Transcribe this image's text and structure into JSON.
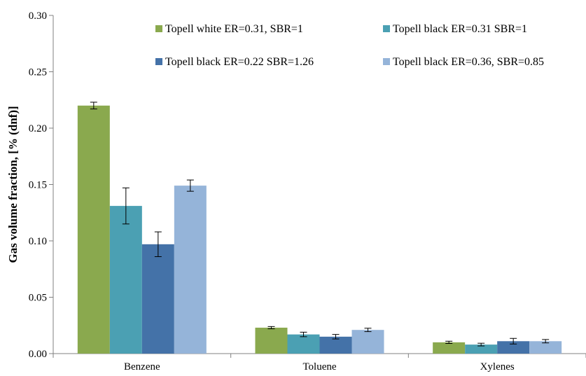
{
  "chart_data": {
    "type": "bar",
    "title": "",
    "xlabel": "",
    "ylabel": "Gas volume fraction, [% (dnf)]",
    "ylim": [
      0,
      0.3
    ],
    "yticks": [
      "0.00",
      "0.05",
      "0.10",
      "0.15",
      "0.20",
      "0.25",
      "0.30"
    ],
    "grid": false,
    "legend_position": "top",
    "categories": [
      "Benzene",
      "Toluene",
      "Xylenes"
    ],
    "series": [
      {
        "name": "Topell white ER=0.31, SBR=1",
        "color": "#8aa94e",
        "values": [
          0.22,
          0.023,
          0.01
        ],
        "errors": [
          0.003,
          0.001,
          0.001
        ]
      },
      {
        "name": "Topell black ER=0.31 SBR=1",
        "color": "#4ba0b3",
        "values": [
          0.131,
          0.017,
          0.008
        ],
        "errors": [
          0.016,
          0.002,
          0.0012
        ]
      },
      {
        "name": "Topell black ER=0.22 SBR=1.26",
        "color": "#4472a8",
        "values": [
          0.097,
          0.015,
          0.011
        ],
        "errors": [
          0.011,
          0.002,
          0.0025
        ]
      },
      {
        "name": "Topell black ER=0.36, SBR=0.85",
        "color": "#95b4d9",
        "values": [
          0.149,
          0.021,
          0.011
        ],
        "errors": [
          0.005,
          0.0015,
          0.0015
        ]
      }
    ]
  }
}
